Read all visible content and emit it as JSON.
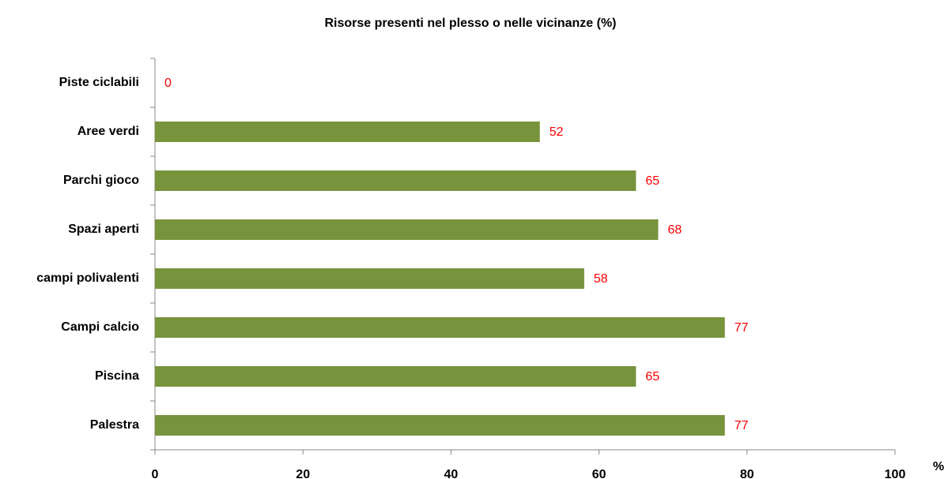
{
  "chart_data": {
    "type": "bar",
    "orientation": "horizontal",
    "title": "Risorse presenti nel plesso o nelle vicinanze (%)",
    "x_label": "%",
    "categories": [
      "Piste ciclabili",
      "Aree verdi",
      "Parchi gioco",
      "Spazi aperti",
      "campi polivalenti",
      "Campi calcio",
      "Piscina",
      "Palestra"
    ],
    "values": [
      0,
      52,
      65,
      68,
      58,
      77,
      65,
      77
    ],
    "color": "#77933c",
    "value_label_color": "#ff0000",
    "xlim": [
      0,
      100
    ],
    "xticks": [
      0,
      20,
      40,
      60,
      80,
      100
    ],
    "grid": false
  }
}
